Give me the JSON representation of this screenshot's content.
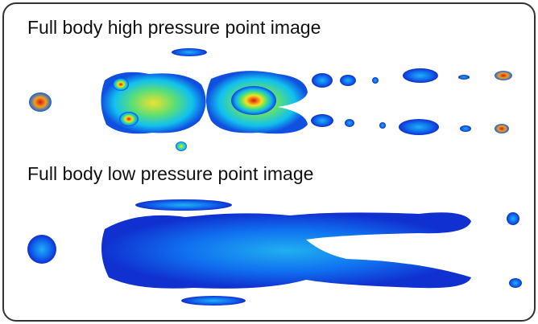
{
  "panels": [
    {
      "label": "Full body high pressure point image"
    },
    {
      "label": "Full body low pressure point image"
    }
  ]
}
